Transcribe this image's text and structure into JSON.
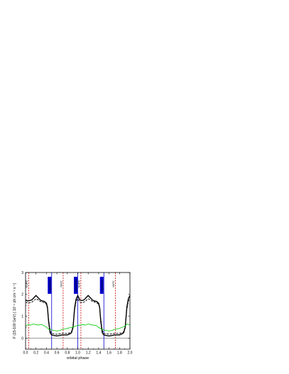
{
  "chart_data": {
    "type": "line",
    "xlabel": "orbital phase",
    "ylabel": "F (15-100 GeV) [ 10⁻⁸ ph cm⁻² s⁻¹]",
    "xlim": [
      0.0,
      2.0
    ],
    "ylim": [
      -0.5,
      3.0
    ],
    "x_ticks": [
      "0.0",
      "0.2",
      "0.4",
      "0.6",
      "0.8",
      "1.0",
      "1.2",
      "1.4",
      "1.6",
      "1.8",
      "2.0"
    ],
    "y_ticks": [
      "0",
      "1",
      "2",
      "3"
    ],
    "zero_line": 0,
    "series": [
      {
        "style": "solid-thick",
        "color": "#000000",
        "x": [
          0.0,
          0.04,
          0.08,
          0.12,
          0.16,
          0.2,
          0.24,
          0.28,
          0.32,
          0.36,
          0.4,
          0.42,
          0.44,
          0.47,
          0.5,
          0.55,
          0.6,
          0.65,
          0.7,
          0.75,
          0.8,
          0.85,
          0.88,
          0.91,
          0.94,
          0.97,
          1.0,
          1.04,
          1.08,
          1.12,
          1.16,
          1.2,
          1.24,
          1.28,
          1.32,
          1.36,
          1.4,
          1.42,
          1.44,
          1.47,
          1.5,
          1.55,
          1.6,
          1.65,
          1.7,
          1.75,
          1.8,
          1.85,
          1.88,
          1.91,
          1.94,
          1.97,
          2.0
        ],
        "y": [
          1.75,
          1.7,
          1.72,
          1.75,
          1.85,
          1.95,
          1.85,
          1.75,
          1.7,
          1.68,
          1.6,
          1.4,
          0.8,
          0.25,
          0.15,
          0.12,
          0.1,
          0.12,
          0.15,
          0.15,
          0.15,
          0.2,
          0.25,
          0.5,
          1.4,
          1.8,
          1.95,
          1.75,
          1.72,
          1.75,
          1.85,
          1.95,
          1.85,
          1.75,
          1.7,
          1.68,
          1.6,
          1.4,
          0.8,
          0.25,
          0.15,
          0.12,
          0.1,
          0.12,
          0.15,
          0.15,
          0.15,
          0.2,
          0.25,
          0.5,
          1.4,
          1.8,
          1.95
        ]
      },
      {
        "style": "dashed",
        "color": "#000000",
        "x": [
          0.0,
          0.04,
          0.08,
          0.12,
          0.16,
          0.2,
          0.24,
          0.28,
          0.32,
          0.36,
          0.4,
          0.42,
          0.44,
          0.47,
          0.5,
          0.55,
          0.6,
          0.65,
          0.7,
          0.75,
          0.8,
          0.85,
          0.88,
          0.91,
          0.94,
          0.97,
          1.0,
          1.04,
          1.08,
          1.12,
          1.16,
          1.2,
          1.24,
          1.28,
          1.32,
          1.36,
          1.4,
          1.42,
          1.44,
          1.47,
          1.5,
          1.55,
          1.6,
          1.65,
          1.7,
          1.75,
          1.8,
          1.85,
          1.88,
          1.91,
          1.94,
          1.97,
          2.0
        ],
        "y": [
          1.65,
          1.6,
          1.62,
          1.65,
          1.72,
          1.8,
          1.75,
          1.68,
          1.65,
          1.62,
          1.55,
          1.35,
          0.9,
          0.35,
          0.22,
          0.2,
          0.18,
          0.2,
          0.22,
          0.22,
          0.22,
          0.25,
          0.3,
          0.55,
          1.3,
          1.7,
          1.8,
          1.65,
          1.62,
          1.65,
          1.72,
          1.8,
          1.75,
          1.68,
          1.65,
          1.62,
          1.55,
          1.35,
          0.9,
          0.35,
          0.22,
          0.2,
          0.18,
          0.2,
          0.22,
          0.22,
          0.22,
          0.25,
          0.3,
          0.55,
          1.3,
          1.7,
          1.8
        ]
      },
      {
        "style": "solid-thin",
        "color": "#00cc00",
        "x": [
          0.0,
          0.05,
          0.1,
          0.15,
          0.2,
          0.25,
          0.3,
          0.35,
          0.4,
          0.45,
          0.5,
          0.55,
          0.6,
          0.65,
          0.7,
          0.75,
          0.8,
          0.85,
          0.9,
          0.95,
          1.0,
          1.05,
          1.1,
          1.15,
          1.2,
          1.25,
          1.3,
          1.35,
          1.4,
          1.45,
          1.5,
          1.55,
          1.6,
          1.65,
          1.7,
          1.75,
          1.8,
          1.85,
          1.9,
          1.95,
          2.0
        ],
        "y": [
          0.55,
          0.62,
          0.6,
          0.65,
          0.62,
          0.6,
          0.63,
          0.58,
          0.5,
          0.4,
          0.38,
          0.35,
          0.33,
          0.35,
          0.4,
          0.42,
          0.45,
          0.48,
          0.5,
          0.55,
          0.58,
          0.6,
          0.62,
          0.6,
          0.65,
          0.62,
          0.6,
          0.58,
          0.5,
          0.42,
          0.38,
          0.35,
          0.33,
          0.35,
          0.4,
          0.42,
          0.45,
          0.5,
          0.55,
          0.65,
          0.6
        ]
      }
    ],
    "vertical_lines": [
      {
        "x": 0.5,
        "color": "#0000cc",
        "style": "solid",
        "label": "apastron"
      },
      {
        "x": 1.0,
        "color": "#0000cc",
        "style": "solid",
        "label": "periastron"
      },
      {
        "x": 1.5,
        "color": "#0000cc",
        "style": "solid",
        "label": "apastron"
      },
      {
        "x": 0.06,
        "color": "#cc0000",
        "style": "dashed",
        "label": "SUPC"
      },
      {
        "x": 0.72,
        "color": "#cc0000",
        "style": "dashed",
        "label": "INFC"
      },
      {
        "x": 1.06,
        "color": "#cc0000",
        "style": "dashed",
        "label": "SUPC"
      },
      {
        "x": 1.72,
        "color": "#cc0000",
        "style": "dashed",
        "label": "INFC"
      }
    ],
    "grid": false,
    "legend": "none"
  }
}
